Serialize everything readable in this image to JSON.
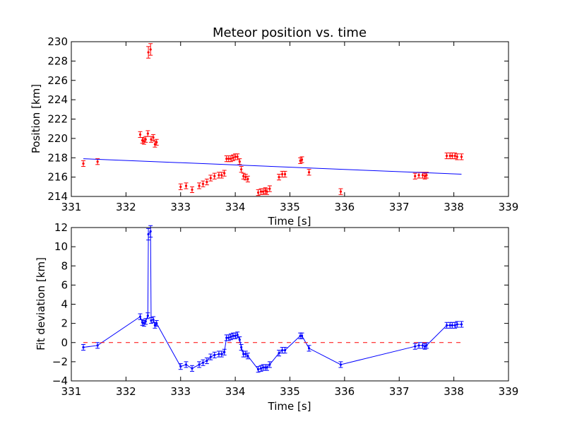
{
  "chart_data": [
    {
      "type": "scatter",
      "title": "Meteor position vs. time",
      "xlabel": "Time [s]",
      "ylabel": "Position [km]",
      "xlim": [
        331,
        339
      ],
      "ylim": [
        214,
        230
      ],
      "xticks": [
        "331",
        "332",
        "333",
        "334",
        "335",
        "336",
        "337",
        "338",
        "339"
      ],
      "yticks": [
        "214",
        "216",
        "218",
        "220",
        "222",
        "224",
        "226",
        "228",
        "230"
      ],
      "grid": false,
      "marker_color": "#ff0000",
      "fit_color": "#0000ff",
      "series": [
        {
          "kind": "errorbar-points",
          "points": [
            [
              331.22,
              217.4
            ],
            [
              331.48,
              217.6
            ],
            [
              332.26,
              220.4
            ],
            [
              332.3,
              219.8
            ],
            [
              332.33,
              219.7
            ],
            [
              332.36,
              219.9
            ],
            [
              332.4,
              220.5
            ],
            [
              332.41,
              228.9
            ],
            [
              332.45,
              229.2
            ],
            [
              332.46,
              219.9
            ],
            [
              332.5,
              220.1
            ],
            [
              332.53,
              219.4
            ],
            [
              332.56,
              219.6
            ],
            [
              333.0,
              215.0
            ],
            [
              333.1,
              215.1
            ],
            [
              333.21,
              214.7
            ],
            [
              333.34,
              215.1
            ],
            [
              333.41,
              215.3
            ],
            [
              333.48,
              215.5
            ],
            [
              333.55,
              215.9
            ],
            [
              333.62,
              216.1
            ],
            [
              333.7,
              216.2
            ],
            [
              333.75,
              216.2
            ],
            [
              333.8,
              216.4
            ],
            [
              333.84,
              217.9
            ],
            [
              333.88,
              217.9
            ],
            [
              333.92,
              217.9
            ],
            [
              333.96,
              218.0
            ],
            [
              334.0,
              218.1
            ],
            [
              334.04,
              218.1
            ],
            [
              334.08,
              217.6
            ],
            [
              334.11,
              216.8
            ],
            [
              334.15,
              216.1
            ],
            [
              334.19,
              216.0
            ],
            [
              334.23,
              215.8
            ],
            [
              334.42,
              214.4
            ],
            [
              334.47,
              214.5
            ],
            [
              334.51,
              214.5
            ],
            [
              334.55,
              214.6
            ],
            [
              334.58,
              214.5
            ],
            [
              334.63,
              214.8
            ],
            [
              334.8,
              216.0
            ],
            [
              334.86,
              216.3
            ],
            [
              334.91,
              216.3
            ],
            [
              335.19,
              217.7
            ],
            [
              335.22,
              217.8
            ],
            [
              335.35,
              216.5
            ],
            [
              335.93,
              214.5
            ],
            [
              337.29,
              216.1
            ],
            [
              337.36,
              216.2
            ],
            [
              337.43,
              216.2
            ],
            [
              337.47,
              216.1
            ],
            [
              337.5,
              216.2
            ],
            [
              337.87,
              218.2
            ],
            [
              337.93,
              218.2
            ],
            [
              337.97,
              218.2
            ],
            [
              338.02,
              218.2
            ],
            [
              338.06,
              218.1
            ],
            [
              338.14,
              218.1
            ]
          ]
        },
        {
          "kind": "fit-line",
          "points": [
            [
              331.22,
              217.9
            ],
            [
              338.14,
              216.3
            ]
          ]
        }
      ]
    },
    {
      "type": "line",
      "title": "",
      "xlabel": "Time [s]",
      "ylabel": "Fit deviation [km]",
      "xlim": [
        331,
        339
      ],
      "ylim": [
        -4,
        12
      ],
      "xticks": [
        "331",
        "332",
        "333",
        "334",
        "335",
        "336",
        "337",
        "338",
        "339"
      ],
      "yticks": [
        "−4",
        "−2",
        "0",
        "2",
        "4",
        "6",
        "8",
        "10",
        "12"
      ],
      "grid": false,
      "line_color": "#0000ff",
      "zero_line_color": "#ff0000",
      "series": [
        {
          "kind": "errorbar-line",
          "points": [
            [
              331.22,
              -0.5
            ],
            [
              331.48,
              -0.3
            ],
            [
              332.26,
              2.7
            ],
            [
              332.3,
              2.1
            ],
            [
              332.33,
              2.0
            ],
            [
              332.36,
              2.2
            ],
            [
              332.4,
              2.8
            ],
            [
              332.41,
              11.3
            ],
            [
              332.45,
              11.6
            ],
            [
              332.46,
              2.3
            ],
            [
              332.5,
              2.4
            ],
            [
              332.53,
              1.8
            ],
            [
              332.56,
              2.0
            ],
            [
              333.0,
              -2.5
            ],
            [
              333.1,
              -2.3
            ],
            [
              333.21,
              -2.7
            ],
            [
              333.34,
              -2.3
            ],
            [
              333.41,
              -2.1
            ],
            [
              333.48,
              -1.9
            ],
            [
              333.55,
              -1.5
            ],
            [
              333.62,
              -1.3
            ],
            [
              333.7,
              -1.2
            ],
            [
              333.75,
              -1.2
            ],
            [
              333.8,
              -1.0
            ],
            [
              333.84,
              0.5
            ],
            [
              333.88,
              0.5
            ],
            [
              333.92,
              0.6
            ],
            [
              333.96,
              0.7
            ],
            [
              334.0,
              0.7
            ],
            [
              334.04,
              0.8
            ],
            [
              334.08,
              0.3
            ],
            [
              334.11,
              -0.5
            ],
            [
              334.15,
              -1.2
            ],
            [
              334.19,
              -1.2
            ],
            [
              334.23,
              -1.4
            ],
            [
              334.42,
              -2.8
            ],
            [
              334.47,
              -2.7
            ],
            [
              334.51,
              -2.6
            ],
            [
              334.55,
              -2.6
            ],
            [
              334.58,
              -2.6
            ],
            [
              334.63,
              -2.3
            ],
            [
              334.8,
              -1.1
            ],
            [
              334.86,
              -0.8
            ],
            [
              334.91,
              -0.8
            ],
            [
              335.19,
              0.7
            ],
            [
              335.22,
              0.7
            ],
            [
              335.35,
              -0.6
            ],
            [
              335.93,
              -2.3
            ],
            [
              337.29,
              -0.4
            ],
            [
              337.36,
              -0.3
            ],
            [
              337.43,
              -0.3
            ],
            [
              337.47,
              -0.4
            ],
            [
              337.5,
              -0.3
            ],
            [
              337.87,
              1.8
            ],
            [
              337.93,
              1.8
            ],
            [
              337.97,
              1.8
            ],
            [
              338.02,
              1.8
            ],
            [
              338.06,
              1.9
            ],
            [
              338.14,
              1.9
            ]
          ]
        },
        {
          "kind": "zero-line",
          "points": [
            [
              331.22,
              0
            ],
            [
              338.14,
              0
            ]
          ]
        }
      ]
    }
  ]
}
